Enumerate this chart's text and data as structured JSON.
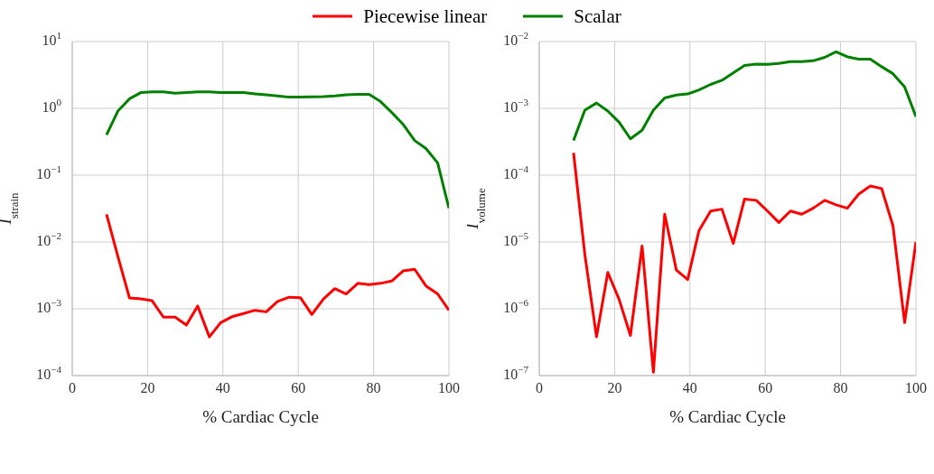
{
  "chart_data": [
    {
      "type": "line",
      "xlabel": "% Cardiac Cycle",
      "ylabel": "I$_{strain}$",
      "log": "y",
      "grid": true,
      "legend": "top",
      "xlim": [
        0,
        100
      ],
      "xticks": [
        0,
        20,
        40,
        60,
        80,
        100
      ],
      "ylim": [
        0.0001,
        10
      ],
      "yticks": [
        {
          "value": 0.0001,
          "label": "10$^{−4}$"
        },
        {
          "value": 0.001,
          "label": "10$^{−3}$"
        },
        {
          "value": 0.01,
          "label": "10$^{−2}$"
        },
        {
          "value": 0.1,
          "label": "10$^{−1}$"
        },
        {
          "value": 1,
          "label": "10$^{0}$"
        },
        {
          "value": 10,
          "label": "10$^{1}$"
        }
      ],
      "x": [
        9.1,
        12.1,
        15.2,
        18.2,
        21.2,
        24.2,
        27.3,
        30.3,
        33.3,
        36.4,
        39.4,
        42.4,
        45.5,
        48.5,
        51.5,
        54.5,
        57.6,
        60.6,
        63.6,
        66.7,
        69.7,
        72.7,
        75.8,
        78.8,
        81.8,
        84.8,
        87.9,
        90.9,
        93.9,
        97.0,
        100
      ],
      "series": [
        {
          "name": "Piecewise linear",
          "color": "#ff0000",
          "values": [
            0.026,
            0.0061,
            0.00145,
            0.00141,
            0.00132,
            0.00075,
            0.00075,
            0.00057,
            0.0011,
            0.00038,
            0.00062,
            0.00076,
            0.00085,
            0.00095,
            0.0009,
            0.00129,
            0.00149,
            0.00146,
            0.00082,
            0.0014,
            0.002,
            0.00167,
            0.0024,
            0.0023,
            0.0024,
            0.0026,
            0.0037,
            0.0039,
            0.0022,
            0.00167,
            0.00095
          ]
        },
        {
          "name": "Scalar",
          "color": "#008000",
          "values": [
            0.4,
            0.91,
            1.39,
            1.72,
            1.77,
            1.77,
            1.68,
            1.72,
            1.77,
            1.77,
            1.73,
            1.72,
            1.72,
            1.65,
            1.59,
            1.53,
            1.47,
            1.47,
            1.49,
            1.5,
            1.53,
            1.59,
            1.62,
            1.62,
            1.27,
            0.87,
            0.57,
            0.33,
            0.25,
            0.153,
            0.032
          ]
        }
      ]
    },
    {
      "type": "line",
      "xlabel": "% Cardiac Cycle",
      "ylabel": "I$_{volume}$",
      "log": "y",
      "grid": true,
      "xlim": [
        0,
        100
      ],
      "xticks": [
        0,
        20,
        40,
        60,
        80,
        100
      ],
      "ylim": [
        1e-07,
        0.01
      ],
      "yticks": [
        {
          "value": 1e-07,
          "label": "10$^{−7}$"
        },
        {
          "value": 1e-06,
          "label": "10$^{−6}$"
        },
        {
          "value": 1e-05,
          "label": "10$^{−5}$"
        },
        {
          "value": 0.0001,
          "label": "10$^{−4}$"
        },
        {
          "value": 0.001,
          "label": "10$^{−3}$"
        },
        {
          "value": 0.01,
          "label": "10$^{−2}$"
        }
      ],
      "x": [
        9.1,
        12.1,
        15.2,
        18.2,
        21.2,
        24.2,
        27.3,
        30.3,
        33.3,
        36.4,
        39.4,
        42.4,
        45.5,
        48.5,
        51.5,
        54.5,
        57.6,
        60.6,
        63.6,
        66.7,
        69.7,
        72.7,
        75.8,
        78.8,
        81.8,
        84.8,
        87.9,
        90.9,
        93.9,
        97.0,
        100
      ],
      "series": [
        {
          "color": "#ff0000",
          "values": [
            0.000216,
            6.5e-06,
            3.8e-07,
            3.5e-06,
            1.38e-06,
            4e-07,
            8.7e-06,
            1.12e-07,
            2.6e-05,
            3.8e-06,
            2.74e-06,
            1.48e-05,
            2.9e-05,
            3.1e-05,
            9.5e-06,
            4.4e-05,
            4.2e-05,
            2.9e-05,
            1.96e-05,
            2.9e-05,
            2.6e-05,
            3.2e-05,
            4.2e-05,
            3.6e-05,
            3.2e-05,
            5.2e-05,
            6.9e-05,
            6.3e-05,
            1.75e-05,
            6.2e-07,
            1e-05
          ]
        },
        {
          "color": "#008000",
          "values": [
            0.00033,
            0.00094,
            0.0012,
            0.00091,
            0.00062,
            0.00035,
            0.00047,
            0.00094,
            0.00143,
            0.00158,
            0.00164,
            0.00189,
            0.00228,
            0.00263,
            0.0034,
            0.0044,
            0.0046,
            0.00455,
            0.0047,
            0.005,
            0.005,
            0.00515,
            0.0058,
            0.007,
            0.0059,
            0.00545,
            0.00545,
            0.0042,
            0.0033,
            0.0021,
            0.00075
          ]
        }
      ]
    }
  ]
}
